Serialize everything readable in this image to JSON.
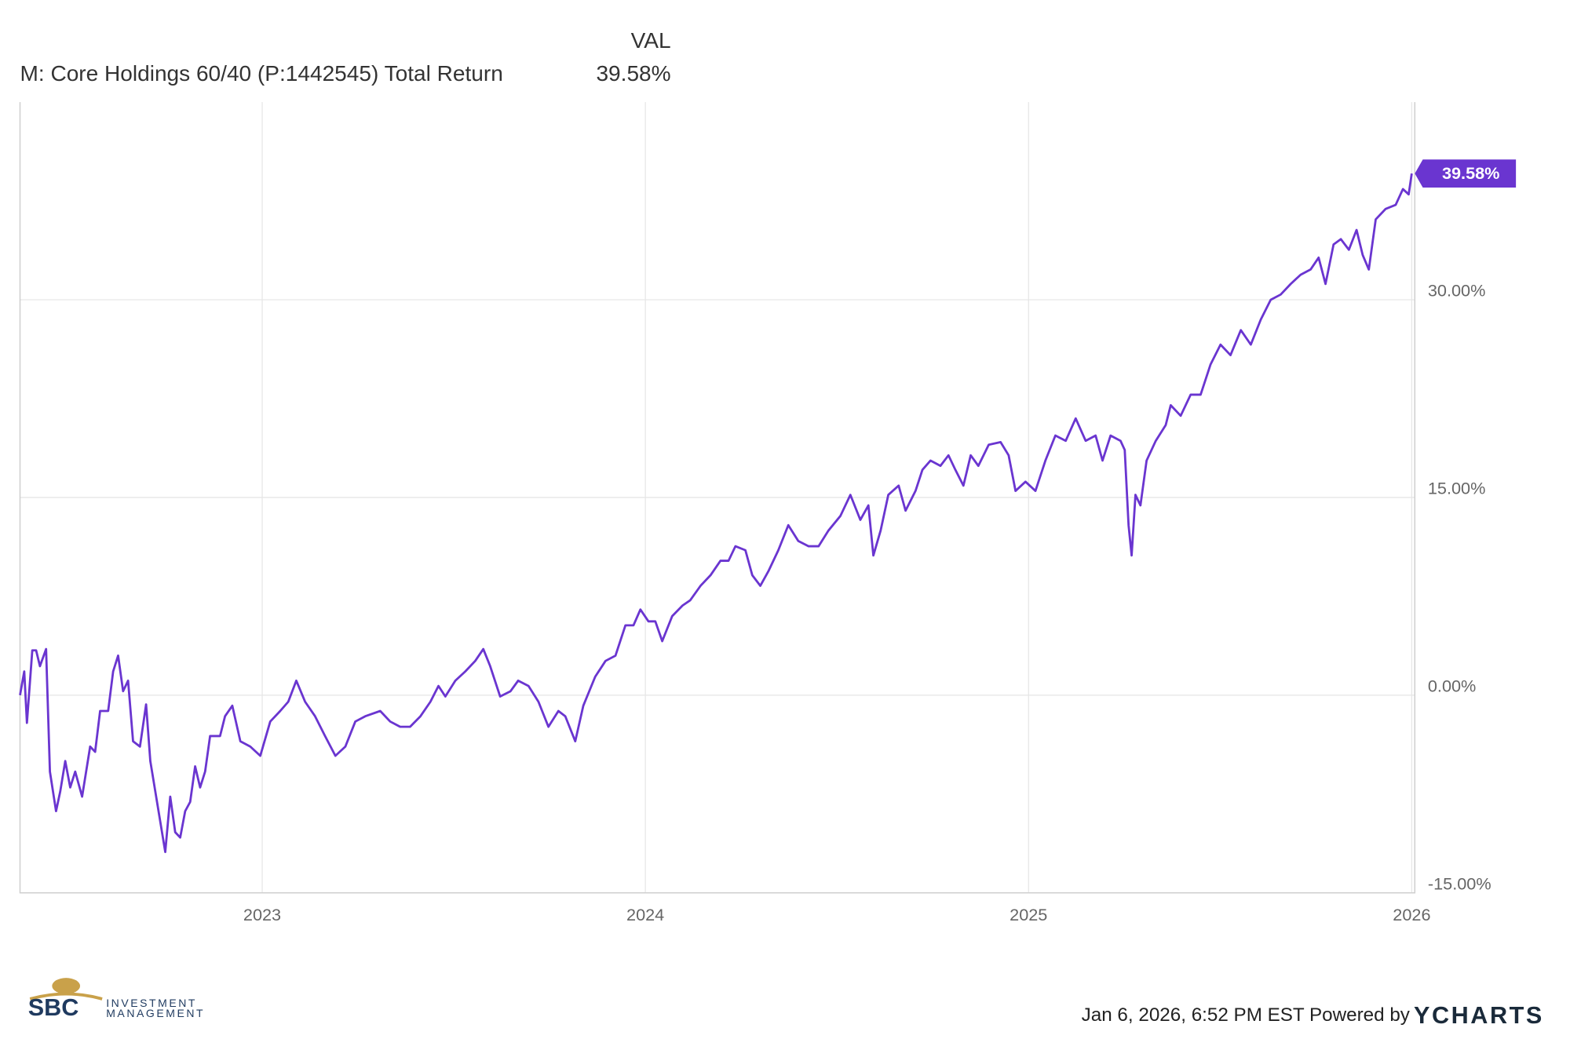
{
  "chart_data": {
    "type": "line",
    "legend_header": "VAL",
    "x": [
      2022.368,
      2022.379,
      2022.386,
      2022.4,
      2022.41,
      2022.42,
      2022.436,
      2022.446,
      2022.462,
      2022.473,
      2022.486,
      2022.499,
      2022.512,
      2022.53,
      2022.551,
      2022.564,
      2022.577,
      2022.598,
      2022.611,
      2022.624,
      2022.637,
      2022.65,
      2022.663,
      2022.681,
      2022.697,
      2022.708,
      2022.721,
      2022.734,
      2022.747,
      2022.76,
      2022.773,
      2022.786,
      2022.799,
      2022.812,
      2022.825,
      2022.838,
      2022.851,
      2022.864,
      2022.89,
      2022.903,
      2022.922,
      2022.943,
      2022.969,
      2022.995,
      2023.021,
      2023.047,
      2023.068,
      2023.089,
      2023.112,
      2023.138,
      2023.164,
      2023.191,
      2023.217,
      2023.243,
      2023.269,
      2023.308,
      2023.334,
      2023.36,
      2023.386,
      2023.413,
      2023.439,
      2023.46,
      2023.478,
      2023.504,
      2023.53,
      2023.556,
      2023.577,
      2023.595,
      2023.621,
      2023.648,
      2023.668,
      2023.695,
      2023.721,
      2023.747,
      2023.773,
      2023.791,
      2023.817,
      2023.838,
      2023.869,
      2023.896,
      2023.922,
      2023.948,
      2023.969,
      2023.987,
      2024.008,
      2024.026,
      2024.044,
      2024.07,
      2024.097,
      2024.117,
      2024.144,
      2024.17,
      2024.196,
      2024.217,
      2024.235,
      2024.261,
      2024.279,
      2024.3,
      2024.321,
      2024.347,
      2024.373,
      2024.399,
      2024.426,
      2024.452,
      2024.478,
      2024.509,
      2024.535,
      2024.561,
      2024.582,
      2024.595,
      2024.614,
      2024.634,
      2024.661,
      2024.679,
      2024.705,
      2024.723,
      2024.744,
      2024.77,
      2024.791,
      2024.809,
      2024.83,
      2024.849,
      2024.869,
      2024.896,
      2024.927,
      2024.948,
      2024.966,
      2024.992,
      2025.018,
      2025.044,
      2025.07,
      2025.097,
      2025.123,
      2025.149,
      2025.175,
      2025.193,
      2025.214,
      2025.24,
      2025.251,
      2025.261,
      2025.269,
      2025.279,
      2025.292,
      2025.308,
      2025.332,
      2025.358,
      2025.371,
      2025.397,
      2025.423,
      2025.449,
      2025.475,
      2025.501,
      2025.527,
      2025.554,
      2025.58,
      2025.606,
      2025.632,
      2025.658,
      2025.684,
      2025.71,
      2025.736,
      2025.757,
      2025.775,
      2025.796,
      2025.815,
      2025.836,
      2025.856,
      2025.872,
      2025.888,
      2025.906,
      2025.932,
      2025.958,
      2025.977,
      2025.992,
      2026.0
    ],
    "series": [
      {
        "name": "M: Core Holdings 60/40 (P:1442545) Total Return",
        "color": "#6a35d0",
        "last_value_label": "39.58%",
        "values": [
          0,
          1.8,
          -2.1,
          3.4,
          3.4,
          2.2,
          3.5,
          -5.8,
          -8.8,
          -7.3,
          -5.0,
          -7.0,
          -5.8,
          -7.7,
          -3.9,
          -4.3,
          -1.2,
          -1.2,
          1.8,
          3.0,
          0.3,
          1.1,
          -3.5,
          -3.9,
          -0.7,
          -5.0,
          -7.3,
          -9.6,
          -11.9,
          -7.7,
          -10.4,
          -10.8,
          -8.8,
          -8.1,
          -5.4,
          -7.0,
          -5.8,
          -3.1,
          -3.1,
          -1.6,
          -0.8,
          -3.5,
          -3.9,
          -4.6,
          -2.0,
          -1.2,
          -0.5,
          1.1,
          -0.5,
          -1.6,
          -3.1,
          -4.6,
          -3.9,
          -2.0,
          -1.6,
          -1.2,
          -2.0,
          -2.4,
          -2.4,
          -1.6,
          -0.5,
          0.7,
          -0.1,
          1.1,
          1.8,
          2.6,
          3.5,
          2.2,
          -0.1,
          0.3,
          1.1,
          0.7,
          -0.5,
          -2.4,
          -1.2,
          -1.6,
          -3.5,
          -0.8,
          1.4,
          2.6,
          3.0,
          5.3,
          5.3,
          6.5,
          5.6,
          5.6,
          4.1,
          6.0,
          6.8,
          7.2,
          8.3,
          9.1,
          10.2,
          10.2,
          11.3,
          11.0,
          9.1,
          8.3,
          9.4,
          11.0,
          12.9,
          11.7,
          11.3,
          11.3,
          12.5,
          13.6,
          15.2,
          13.3,
          14.4,
          10.6,
          12.5,
          15.2,
          15.9,
          14.0,
          15.5,
          17.1,
          17.8,
          17.4,
          18.2,
          17.1,
          15.9,
          18.2,
          17.4,
          19.0,
          19.2,
          18.2,
          15.5,
          16.2,
          15.5,
          17.8,
          19.7,
          19.3,
          21.0,
          19.3,
          19.7,
          17.8,
          19.7,
          19.3,
          18.6,
          12.9,
          10.6,
          15.2,
          14.4,
          17.8,
          19.3,
          20.5,
          22.0,
          21.2,
          22.8,
          22.8,
          25.1,
          26.6,
          25.8,
          27.7,
          26.6,
          28.5,
          30.0,
          30.4,
          31.2,
          31.9,
          32.3,
          33.2,
          31.2,
          34.2,
          34.6,
          33.8,
          35.3,
          33.4,
          32.3,
          36.1,
          36.9,
          37.2,
          38.4,
          38.0,
          39.58
        ]
      }
    ],
    "xlim": [
      2022.368,
      2026.008
    ],
    "xticks": [
      2023,
      2024,
      2025,
      2026
    ],
    "ylim": [
      -15,
      45
    ],
    "yticks": [
      {
        "value": -15,
        "label": "-15.00%"
      },
      {
        "value": 0,
        "label": "0.00%"
      },
      {
        "value": 15,
        "label": "15.00%"
      },
      {
        "value": 30,
        "label": "30.00%"
      }
    ],
    "grid": true
  },
  "footer": {
    "timestamp": "Jan 6, 2026, 6:52 PM EST Powered by",
    "brand": "YCHARTS",
    "logo": {
      "initials": "SBC",
      "line1": "INVESTMENT",
      "line2": "MANAGEMENT"
    }
  }
}
